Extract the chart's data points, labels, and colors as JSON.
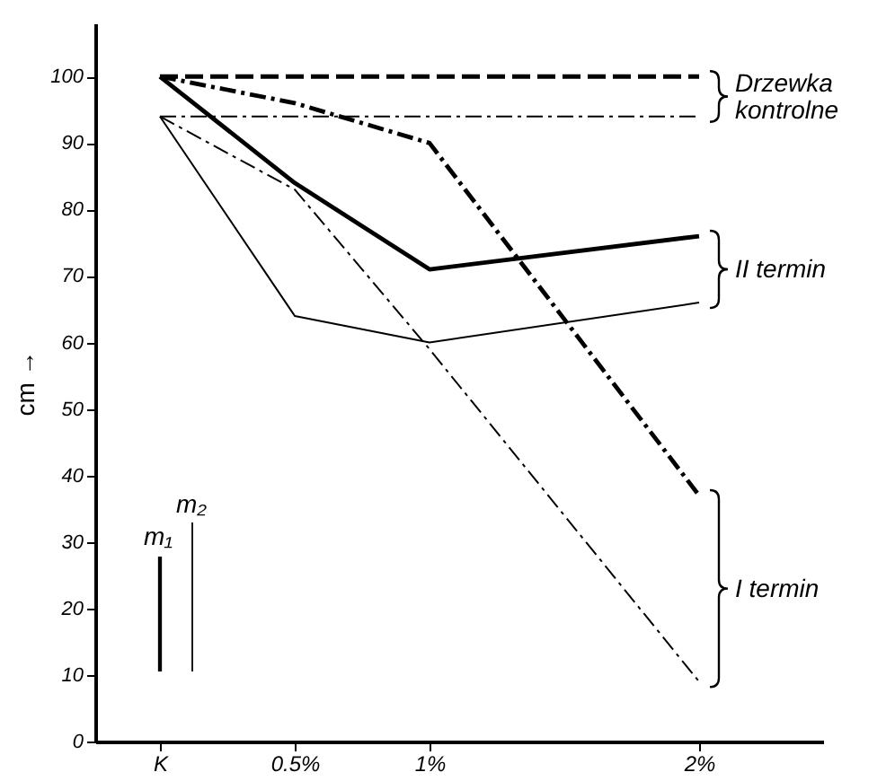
{
  "chart_data": {
    "type": "line",
    "ylabel": "cm →",
    "x": [
      0,
      0.5,
      1,
      2
    ],
    "xlim": [
      -0.24,
      2.46
    ],
    "xticks": [
      {
        "value": 0,
        "label": "K"
      },
      {
        "value": 0.5,
        "label": "0.5%"
      },
      {
        "value": 1,
        "label": "1%"
      },
      {
        "value": 2,
        "label": "2%"
      }
    ],
    "ylim": [
      0,
      108
    ],
    "yticks": [
      0,
      10,
      20,
      30,
      40,
      50,
      60,
      70,
      80,
      90,
      100
    ],
    "marker": "none",
    "series": [
      {
        "color": "#000000",
        "line_style": "dashed",
        "values": [
          100,
          100,
          100,
          100
        ]
      },
      {
        "color": "#000000",
        "line_style": "dotted",
        "values": [
          94,
          94,
          94,
          94
        ]
      },
      {
        "color": "#000000",
        "line_style": "solid",
        "values": [
          100,
          84,
          71,
          76
        ]
      },
      {
        "color": "#000000",
        "line_style": "solid",
        "values": [
          94,
          64,
          60,
          66
        ]
      },
      {
        "color": "#000000",
        "line_style": "dotted",
        "values": [
          100,
          96,
          90,
          37
        ]
      },
      {
        "color": "#000000",
        "line_style": "dotted",
        "values": [
          94,
          83,
          59,
          9
        ]
      }
    ],
    "annotations": [
      "Drzewka kontrolne",
      "II termin",
      "I termin",
      "m₁",
      "m₂"
    ]
  }
}
